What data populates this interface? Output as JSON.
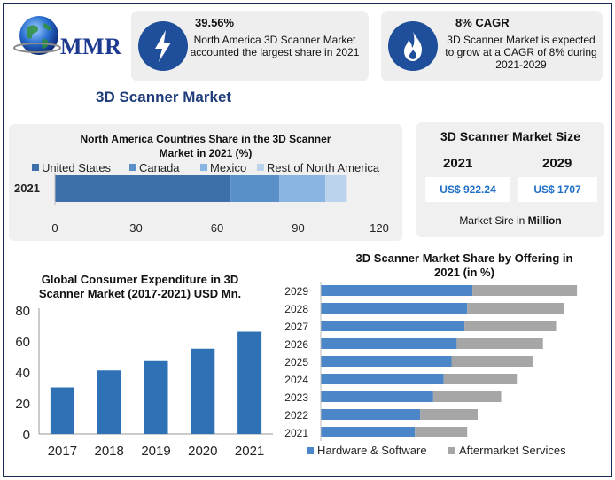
{
  "logo": {
    "text": "MMR",
    "icon": "globe-icon"
  },
  "stats": [
    {
      "icon": "lightning-icon",
      "headline": "39.56%",
      "body": "North America 3D Scanner Market accounted the largest share in 2021"
    },
    {
      "icon": "flame-icon",
      "headline": "8% CAGR",
      "body": "3D Scanner Market is expected to grow at a CAGR of 8% during 2021-2029"
    }
  ],
  "main_title": "3D Scanner Market",
  "market_size": {
    "title": "3D Scanner Market Size",
    "years": [
      "2021",
      "2029"
    ],
    "values": [
      "US$ 922.24",
      "US$ 1707"
    ],
    "note_prefix": "Market Sire in ",
    "note_bold": "Million"
  },
  "colors": {
    "navy": "#1f4e9a",
    "us": "#3d6fa8",
    "canada": "#5a8fc8",
    "mexico": "#8ab4e2",
    "rest": "#bcd3ee",
    "hardware": "#4a86c8",
    "aftermarket": "#a6a6a6",
    "expenditure": "#2f71b5"
  },
  "chart_data": [
    {
      "type": "bar",
      "orientation": "horizontal-stacked",
      "title": "North America Countries Share in the 3D Scanner Market in 2021 (%)",
      "categories": [
        "2021"
      ],
      "series": [
        {
          "name": "United States",
          "values": [
            65
          ]
        },
        {
          "name": "Canada",
          "values": [
            18
          ]
        },
        {
          "name": "Mexico",
          "values": [
            17
          ]
        },
        {
          "name": "Rest of North America",
          "values": [
            8
          ]
        }
      ],
      "xlim": [
        0,
        120
      ],
      "xticks": [
        0,
        30,
        60,
        90,
        120
      ],
      "legend": "top"
    },
    {
      "type": "bar",
      "title": "Global Consumer Expenditure in 3D Scanner Market (2017-2021) USD Mn.",
      "categories": [
        "2017",
        "2018",
        "2019",
        "2020",
        "2021"
      ],
      "values": [
        30,
        41,
        47,
        55,
        66
      ],
      "ylim": [
        0,
        80
      ],
      "yticks": [
        0,
        20,
        40,
        60,
        80
      ]
    },
    {
      "type": "bar",
      "orientation": "horizontal-stacked",
      "title": "3D Scanner Market Share by Offering in 2021 (in %)",
      "categories": [
        "2029",
        "2028",
        "2027",
        "2026",
        "2025",
        "2024",
        "2023",
        "2022",
        "2021"
      ],
      "series": [
        {
          "name": "Hardware & Software",
          "values": [
            58,
            56,
            55,
            52,
            50,
            47,
            43,
            38,
            36
          ]
        },
        {
          "name": "Aftermarket Services",
          "values": [
            40,
            37,
            35,
            33,
            31,
            28,
            26,
            22,
            20
          ]
        }
      ],
      "legend": "bottom"
    }
  ]
}
